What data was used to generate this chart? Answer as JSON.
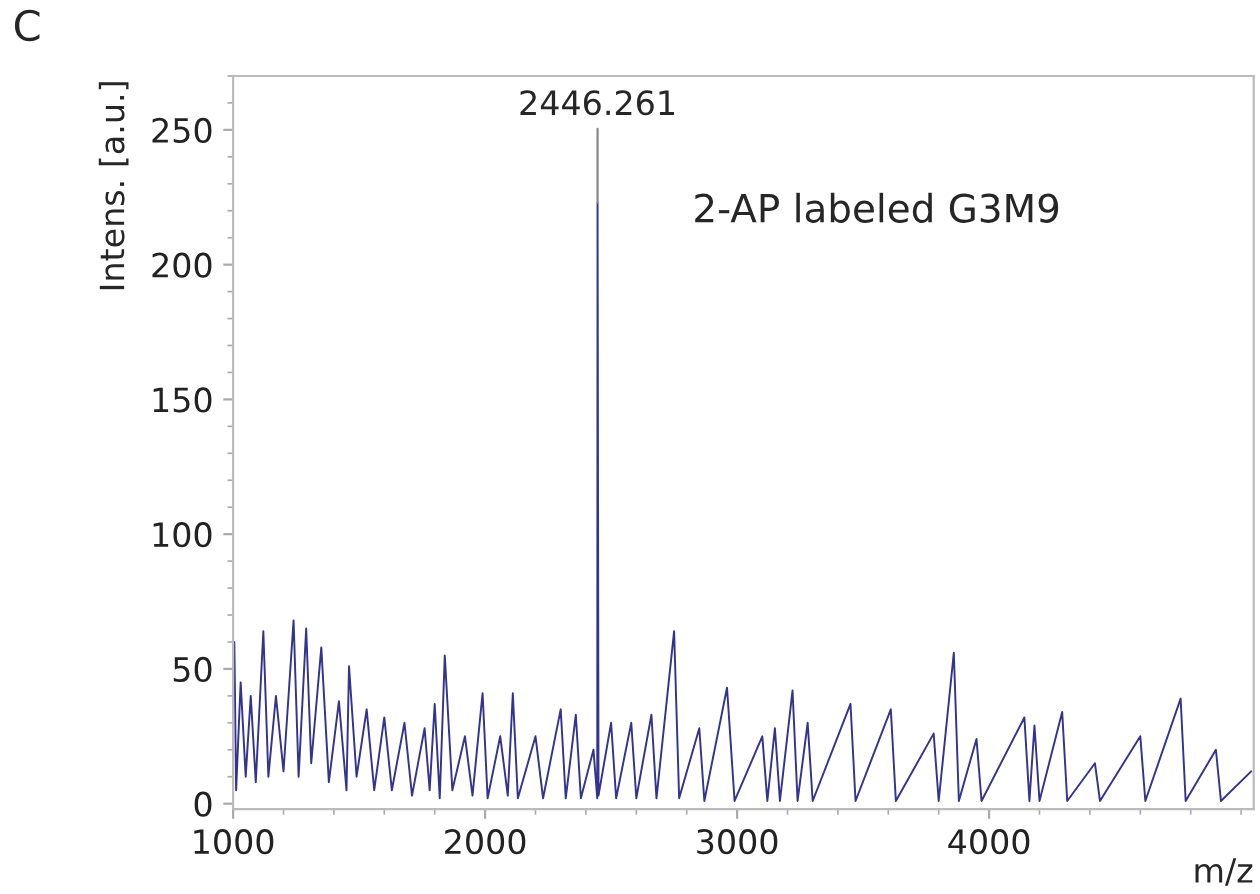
{
  "chart_data": {
    "type": "line",
    "title": "C",
    "xlabel": "m/z",
    "ylabel": "Intens. [a.u.]",
    "xlim": [
      1000,
      5050
    ],
    "xticks": [
      1000,
      2000,
      3000,
      4000
    ],
    "ylim": [
      -2,
      270
    ],
    "yticks": [
      0,
      50,
      100,
      150,
      200,
      250
    ],
    "grid": false,
    "legend": false,
    "marker": "none",
    "line_style": "solid",
    "x": [
      1005,
      1012,
      1030,
      1050,
      1070,
      1090,
      1120,
      1140,
      1170,
      1200,
      1240,
      1260,
      1290,
      1310,
      1350,
      1380,
      1420,
      1450,
      1460,
      1490,
      1530,
      1560,
      1600,
      1630,
      1680,
      1710,
      1760,
      1780,
      1800,
      1820,
      1840,
      1870,
      1920,
      1950,
      1990,
      2010,
      2060,
      2090,
      2110,
      2130,
      2200,
      2230,
      2300,
      2320,
      2360,
      2380,
      2430,
      2445,
      2446.261,
      2450,
      2500,
      2520,
      2580,
      2600,
      2660,
      2680,
      2750,
      2770,
      2850,
      2870,
      2960,
      2990,
      3100,
      3120,
      3150,
      3170,
      3220,
      3240,
      3280,
      3300,
      3450,
      3470,
      3610,
      3630,
      3780,
      3800,
      3860,
      3880,
      3950,
      3970,
      4140,
      4160,
      4180,
      4200,
      4290,
      4310,
      4420,
      4440,
      4600,
      4620,
      4760,
      4780,
      4900,
      4920,
      5040
    ],
    "series": [
      {
        "color": "#34348f",
        "values": [
          60,
          5,
          45,
          10,
          40,
          8,
          64,
          10,
          40,
          12,
          68,
          10,
          65,
          15,
          58,
          8,
          38,
          5,
          51,
          10,
          35,
          5,
          32,
          5,
          30,
          3,
          28,
          5,
          37,
          2,
          55,
          5,
          25,
          3,
          41,
          2,
          25,
          3,
          41,
          2,
          25,
          2,
          35,
          2,
          33,
          2,
          20,
          2,
          223,
          3,
          30,
          2,
          30,
          2,
          33,
          2,
          64,
          2,
          28,
          1,
          43,
          1,
          25,
          1,
          28,
          1,
          42,
          1,
          30,
          1,
          37,
          1,
          35,
          1,
          26,
          1,
          56,
          1,
          24,
          1,
          32,
          1,
          29,
          1,
          34,
          1,
          15,
          1,
          25,
          1,
          39,
          1,
          20,
          1,
          12
        ]
      }
    ],
    "annotations": [
      {
        "text": "2446.261",
        "x": 2446.261,
        "y": 223
      },
      "2-AP labeled G3M9"
    ]
  }
}
